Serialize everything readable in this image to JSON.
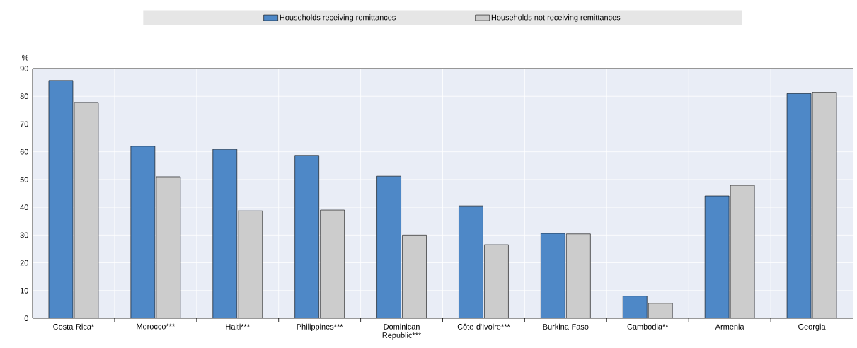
{
  "chart_data": {
    "type": "bar",
    "ylabel": "%",
    "categories": [
      "Costa Rica*",
      "Morocco***",
      "Haiti***",
      "Philippines***",
      "Dominican Republic***",
      "Côte d'Ivoire***",
      "Burkina Faso",
      "Cambodia**",
      "Armenia",
      "Georgia"
    ],
    "series": [
      {
        "name": "Households receiving remittances",
        "color": "#4e88c7",
        "values": [
          85.7,
          62,
          60.9,
          58.7,
          51.2,
          40.5,
          30.6,
          8,
          44.1,
          81
        ]
      },
      {
        "name": "Households not receiving remittances",
        "color": "#cccccc",
        "values": [
          77.8,
          51,
          38.7,
          39,
          30,
          26.5,
          30.4,
          5.4,
          47.9,
          81.5
        ]
      }
    ],
    "ylim": [
      0,
      90
    ],
    "yticks": [
      0,
      10,
      20,
      30,
      40,
      50,
      60,
      70,
      80,
      90
    ],
    "grid": true,
    "legend": "top"
  }
}
